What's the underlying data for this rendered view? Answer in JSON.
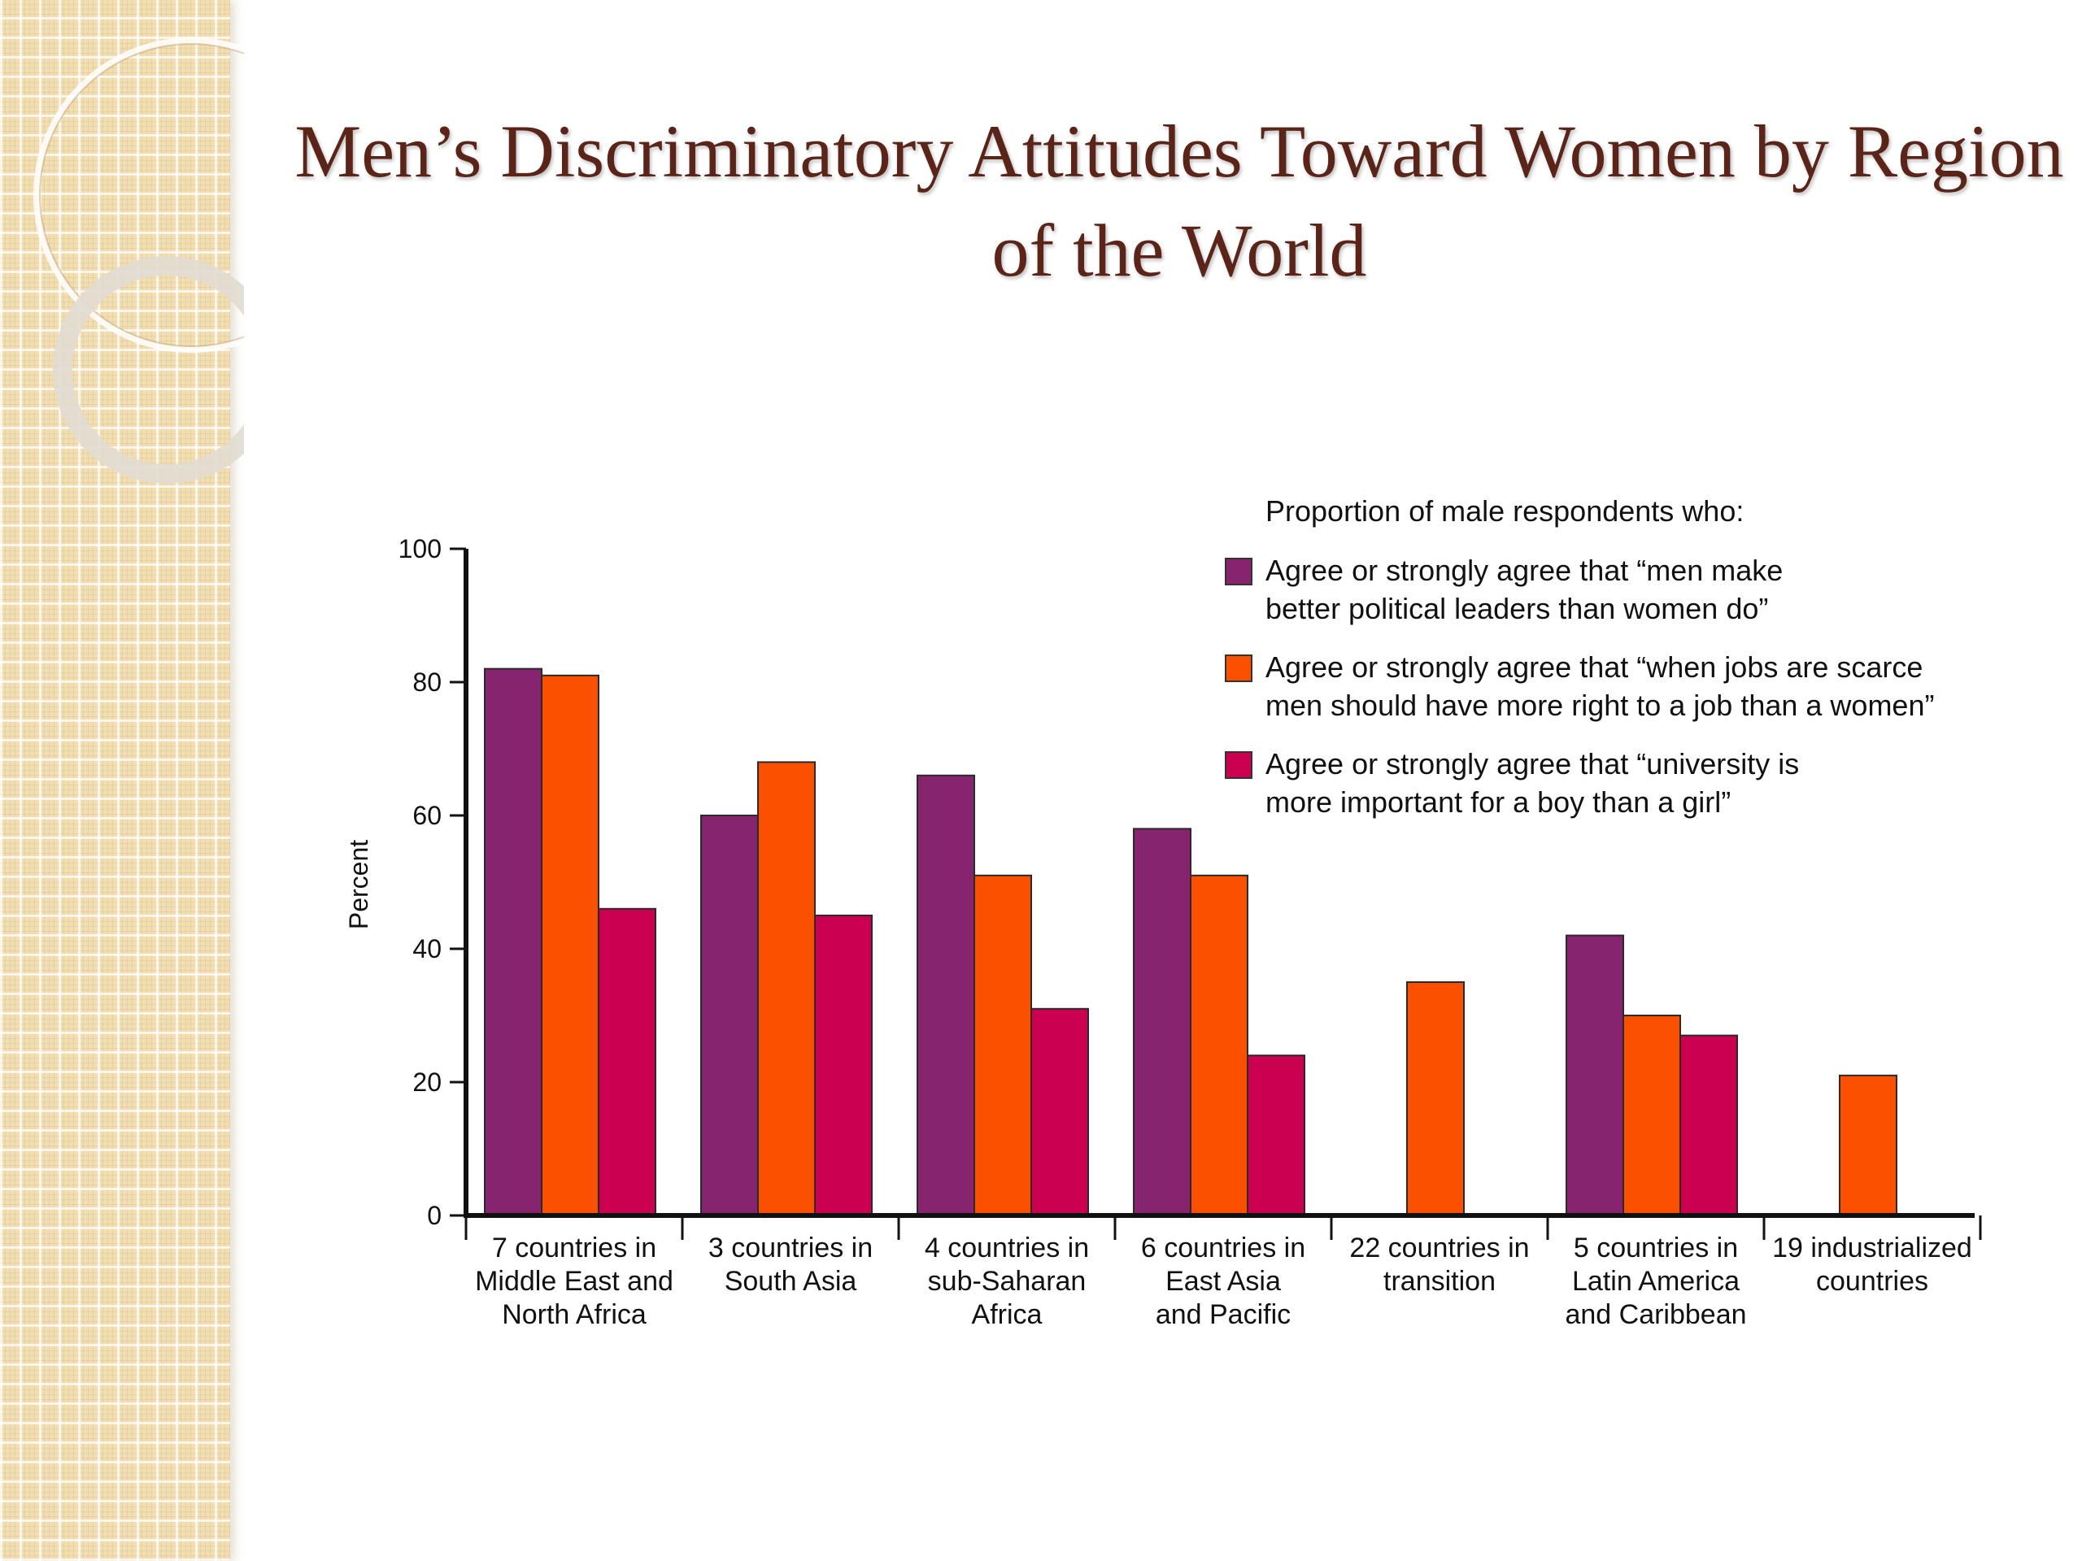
{
  "slide": {
    "title": "Men’s Discriminatory Attitudes Toward Women by Region of the World"
  },
  "chart_data": {
    "type": "bar",
    "title": "",
    "ylabel": "Percent",
    "xlabel": "",
    "ylim": [
      0,
      100
    ],
    "yticks": [
      "0",
      "20",
      "40",
      "60",
      "80",
      "100"
    ],
    "legend_title": "Proportion of male respondents who:",
    "legend_position": "top-right",
    "grid": false,
    "categories": [
      "7 countries in\nMiddle East and\nNorth Africa",
      "3 countries in\nSouth Asia",
      "4 countries in\nsub-Saharan\nAfrica",
      "6 countries in\nEast Asia\nand Pacific",
      "22 countries in\ntransition",
      "5 countries in\nLatin America\nand Caribbean",
      "19 industrialized\ncountries"
    ],
    "series": [
      {
        "name": "Agree or strongly agree that “men make\nbetter political leaders than women do”",
        "color": "#862470",
        "values": [
          82,
          60,
          66,
          58,
          null,
          42,
          null
        ]
      },
      {
        "name": "Agree or strongly agree that “when jobs are scarce\nmen should have more right to a job than a women”",
        "color": "#fb5000",
        "values": [
          81,
          68,
          51,
          51,
          35,
          30,
          21
        ]
      },
      {
        "name": "Agree or strongly agree that “university is\nmore important for a boy than a girl”",
        "color": "#cb0050",
        "values": [
          46,
          45,
          31,
          24,
          null,
          27,
          null
        ]
      }
    ]
  }
}
